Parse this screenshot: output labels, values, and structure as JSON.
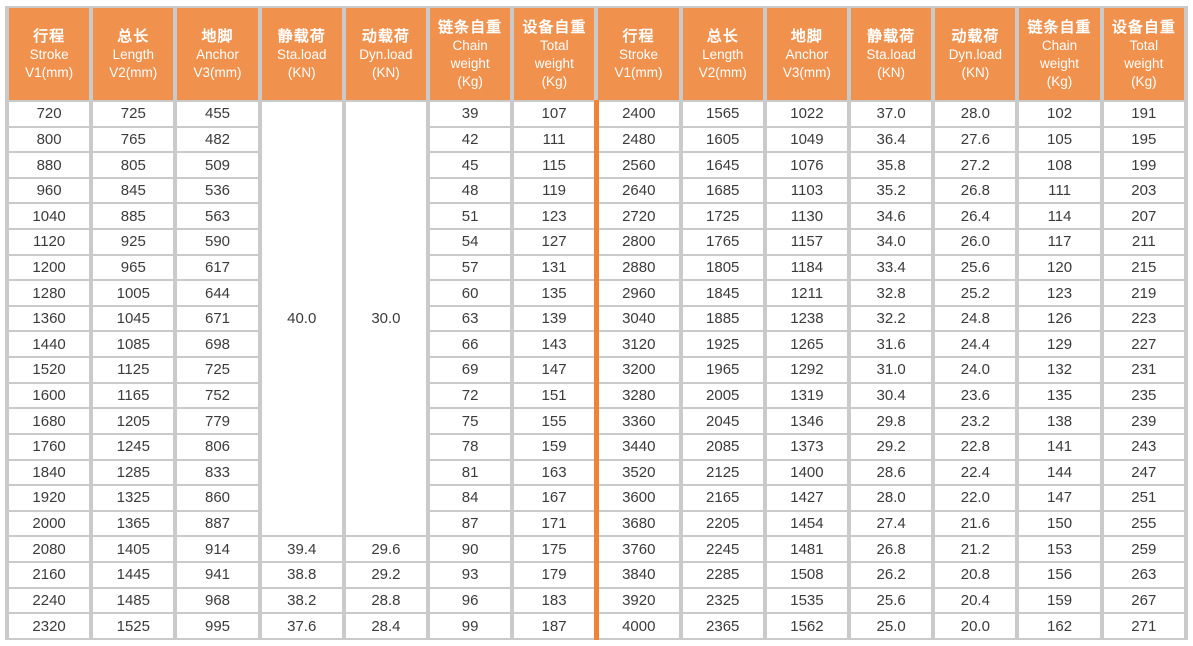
{
  "colors": {
    "header_background": "#f0924e",
    "header_text": "#ffffff",
    "grid_border": "#cacaca",
    "middle_divider": "#ee8434",
    "cell_text": "#3b3b3b"
  },
  "table": {
    "column_headers": [
      {
        "id": "stroke",
        "lines": [
          "行程",
          "Stroke",
          "V1(mm)"
        ]
      },
      {
        "id": "length",
        "lines": [
          "总长",
          "Length",
          "V2(mm)"
        ]
      },
      {
        "id": "anchor",
        "lines": [
          "地脚",
          "Anchor",
          "V3(mm)"
        ]
      },
      {
        "id": "sta-load",
        "lines": [
          "静载荷",
          "Sta.load",
          "(KN)"
        ]
      },
      {
        "id": "dyn-load",
        "lines": [
          "动载荷",
          "Dyn.load",
          "(KN)"
        ]
      },
      {
        "id": "chain-weight",
        "lines": [
          "链条自重",
          "Chain",
          "weight",
          "(Kg)"
        ]
      },
      {
        "id": "total-weight",
        "lines": [
          "设备自重",
          "Total",
          "weight",
          "(Kg)"
        ]
      }
    ],
    "left": {
      "merged_sta_load": "40.0",
      "merged_dyn_load": "30.0",
      "merged_row_span": 17,
      "rows": [
        [
          "720",
          "725",
          "455",
          null,
          null,
          "39",
          "107"
        ],
        [
          "800",
          "765",
          "482",
          null,
          null,
          "42",
          "111"
        ],
        [
          "880",
          "805",
          "509",
          null,
          null,
          "45",
          "115"
        ],
        [
          "960",
          "845",
          "536",
          null,
          null,
          "48",
          "119"
        ],
        [
          "1040",
          "885",
          "563",
          null,
          null,
          "51",
          "123"
        ],
        [
          "1120",
          "925",
          "590",
          null,
          null,
          "54",
          "127"
        ],
        [
          "1200",
          "965",
          "617",
          null,
          null,
          "57",
          "131"
        ],
        [
          "1280",
          "1005",
          "644",
          null,
          null,
          "60",
          "135"
        ],
        [
          "1360",
          "1045",
          "671",
          null,
          null,
          "63",
          "139"
        ],
        [
          "1440",
          "1085",
          "698",
          null,
          null,
          "66",
          "143"
        ],
        [
          "1520",
          "1125",
          "725",
          null,
          null,
          "69",
          "147"
        ],
        [
          "1600",
          "1165",
          "752",
          null,
          null,
          "72",
          "151"
        ],
        [
          "1680",
          "1205",
          "779",
          null,
          null,
          "75",
          "155"
        ],
        [
          "1760",
          "1245",
          "806",
          null,
          null,
          "78",
          "159"
        ],
        [
          "1840",
          "1285",
          "833",
          null,
          null,
          "81",
          "163"
        ],
        [
          "1920",
          "1325",
          "860",
          null,
          null,
          "84",
          "167"
        ],
        [
          "2000",
          "1365",
          "887",
          null,
          null,
          "87",
          "171"
        ],
        [
          "2080",
          "1405",
          "914",
          "39.4",
          "29.6",
          "90",
          "175"
        ],
        [
          "2160",
          "1445",
          "941",
          "38.8",
          "29.2",
          "93",
          "179"
        ],
        [
          "2240",
          "1485",
          "968",
          "38.2",
          "28.8",
          "96",
          "183"
        ],
        [
          "2320",
          "1525",
          "995",
          "37.6",
          "28.4",
          "99",
          "187"
        ]
      ]
    },
    "right": {
      "rows": [
        [
          "2400",
          "1565",
          "1022",
          "37.0",
          "28.0",
          "102",
          "191"
        ],
        [
          "2480",
          "1605",
          "1049",
          "36.4",
          "27.6",
          "105",
          "195"
        ],
        [
          "2560",
          "1645",
          "1076",
          "35.8",
          "27.2",
          "108",
          "199"
        ],
        [
          "2640",
          "1685",
          "1103",
          "35.2",
          "26.8",
          "111",
          "203"
        ],
        [
          "2720",
          "1725",
          "1130",
          "34.6",
          "26.4",
          "114",
          "207"
        ],
        [
          "2800",
          "1765",
          "1157",
          "34.0",
          "26.0",
          "117",
          "211"
        ],
        [
          "2880",
          "1805",
          "1184",
          "33.4",
          "25.6",
          "120",
          "215"
        ],
        [
          "2960",
          "1845",
          "1211",
          "32.8",
          "25.2",
          "123",
          "219"
        ],
        [
          "3040",
          "1885",
          "1238",
          "32.2",
          "24.8",
          "126",
          "223"
        ],
        [
          "3120",
          "1925",
          "1265",
          "31.6",
          "24.4",
          "129",
          "227"
        ],
        [
          "3200",
          "1965",
          "1292",
          "31.0",
          "24.0",
          "132",
          "231"
        ],
        [
          "3280",
          "2005",
          "1319",
          "30.4",
          "23.6",
          "135",
          "235"
        ],
        [
          "3360",
          "2045",
          "1346",
          "29.8",
          "23.2",
          "138",
          "239"
        ],
        [
          "3440",
          "2085",
          "1373",
          "29.2",
          "22.8",
          "141",
          "243"
        ],
        [
          "3520",
          "2125",
          "1400",
          "28.6",
          "22.4",
          "144",
          "247"
        ],
        [
          "3600",
          "2165",
          "1427",
          "28.0",
          "22.0",
          "147",
          "251"
        ],
        [
          "3680",
          "2205",
          "1454",
          "27.4",
          "21.6",
          "150",
          "255"
        ],
        [
          "3760",
          "2245",
          "1481",
          "26.8",
          "21.2",
          "153",
          "259"
        ],
        [
          "3840",
          "2285",
          "1508",
          "26.2",
          "20.8",
          "156",
          "263"
        ],
        [
          "3920",
          "2325",
          "1535",
          "25.6",
          "20.4",
          "159",
          "267"
        ],
        [
          "4000",
          "2365",
          "1562",
          "25.0",
          "20.0",
          "162",
          "271"
        ]
      ]
    }
  }
}
